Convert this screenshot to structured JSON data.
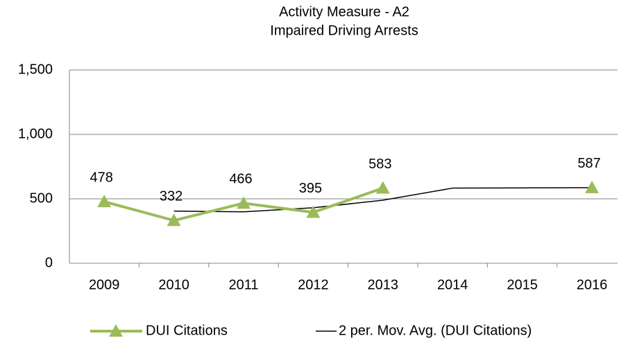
{
  "chart_data": {
    "type": "line",
    "title": "Activity Measure - A2",
    "subtitle": "Impaired Driving Arrests",
    "categories": [
      "2009",
      "2010",
      "2011",
      "2012",
      "2013",
      "2014",
      "2015",
      "2016"
    ],
    "series": [
      {
        "name": "DUI Citations",
        "color": "#9bbb59",
        "values": [
          478,
          332,
          466,
          395,
          583,
          null,
          null,
          587
        ]
      },
      {
        "name": "2 per. Mov. Avg. (DUI Citations)",
        "color": "#000000",
        "values": [
          null,
          405,
          399,
          430.5,
          489,
          583,
          585,
          587
        ]
      }
    ],
    "ylim": [
      0,
      1500
    ],
    "yticks": [
      0,
      500,
      {
        "value": 1000,
        "label": "1,000"
      },
      {
        "value": 1500,
        "label": "1,500"
      }
    ],
    "grid": true,
    "legend": "bottom"
  }
}
